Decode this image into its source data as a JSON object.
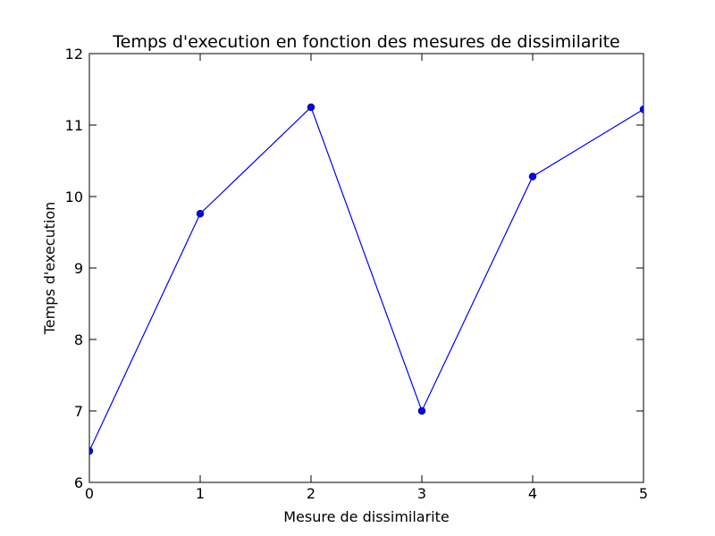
{
  "chart_data": {
    "type": "line",
    "title": "Temps d'execution en fonction des mesures de dissimilarite",
    "xlabel": "Mesure de dissimilarite",
    "ylabel": "Temps d'execution",
    "xlim": [
      0,
      5
    ],
    "ylim": [
      6,
      12
    ],
    "x_ticks": [
      "0",
      "1",
      "2",
      "3",
      "4",
      "5"
    ],
    "y_ticks": [
      "6",
      "7",
      "8",
      "9",
      "10",
      "11",
      "12"
    ],
    "grid": false,
    "legend": "none",
    "series": [
      {
        "color": "#0000ff",
        "marker": "circle",
        "x": [
          0,
          1,
          2,
          3,
          4,
          5
        ],
        "y": [
          6.44,
          9.76,
          11.25,
          7.0,
          10.28,
          11.22
        ]
      }
    ]
  }
}
